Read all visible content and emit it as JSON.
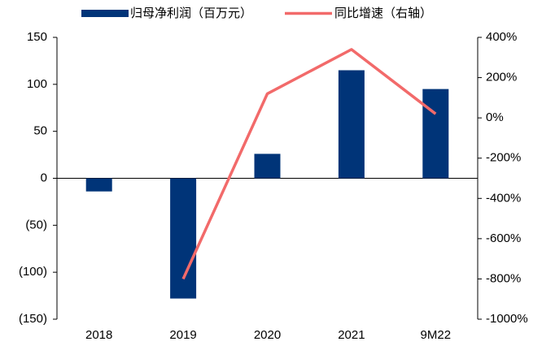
{
  "chart_data": {
    "type": "bar_line",
    "categories": [
      "2018",
      "2019",
      "2020",
      "2021",
      "9M22"
    ],
    "series": [
      {
        "name": "归母净利润（百万元）",
        "color": "#003478",
        "type": "bar",
        "values": [
          -14,
          -128,
          26,
          115,
          95
        ]
      },
      {
        "name": "同比增速（右轴）",
        "color": "#f26a6a",
        "type": "line",
        "axis": "y2",
        "values": [
          null,
          -800,
          120,
          340,
          20
        ]
      }
    ],
    "ylim": [
      -150,
      150
    ],
    "yticks": [
      150,
      100,
      50,
      0,
      {
        "value": -50,
        "label": "(50)"
      },
      {
        "value": -100,
        "label": "(100)"
      },
      {
        "value": -150,
        "label": "(150)"
      }
    ],
    "y2lim": [
      -1000,
      400
    ],
    "y2ticks": [
      {
        "value": 400,
        "label": "400%"
      },
      {
        "value": 200,
        "label": "200%"
      },
      {
        "value": 0,
        "label": "0%"
      },
      {
        "value": -200,
        "label": "-200%"
      },
      {
        "value": -400,
        "label": "-400%"
      },
      {
        "value": -600,
        "label": "-600%"
      },
      {
        "value": -800,
        "label": "-800%"
      },
      {
        "value": -1000,
        "label": "-1000%"
      }
    ],
    "legend": "top"
  }
}
